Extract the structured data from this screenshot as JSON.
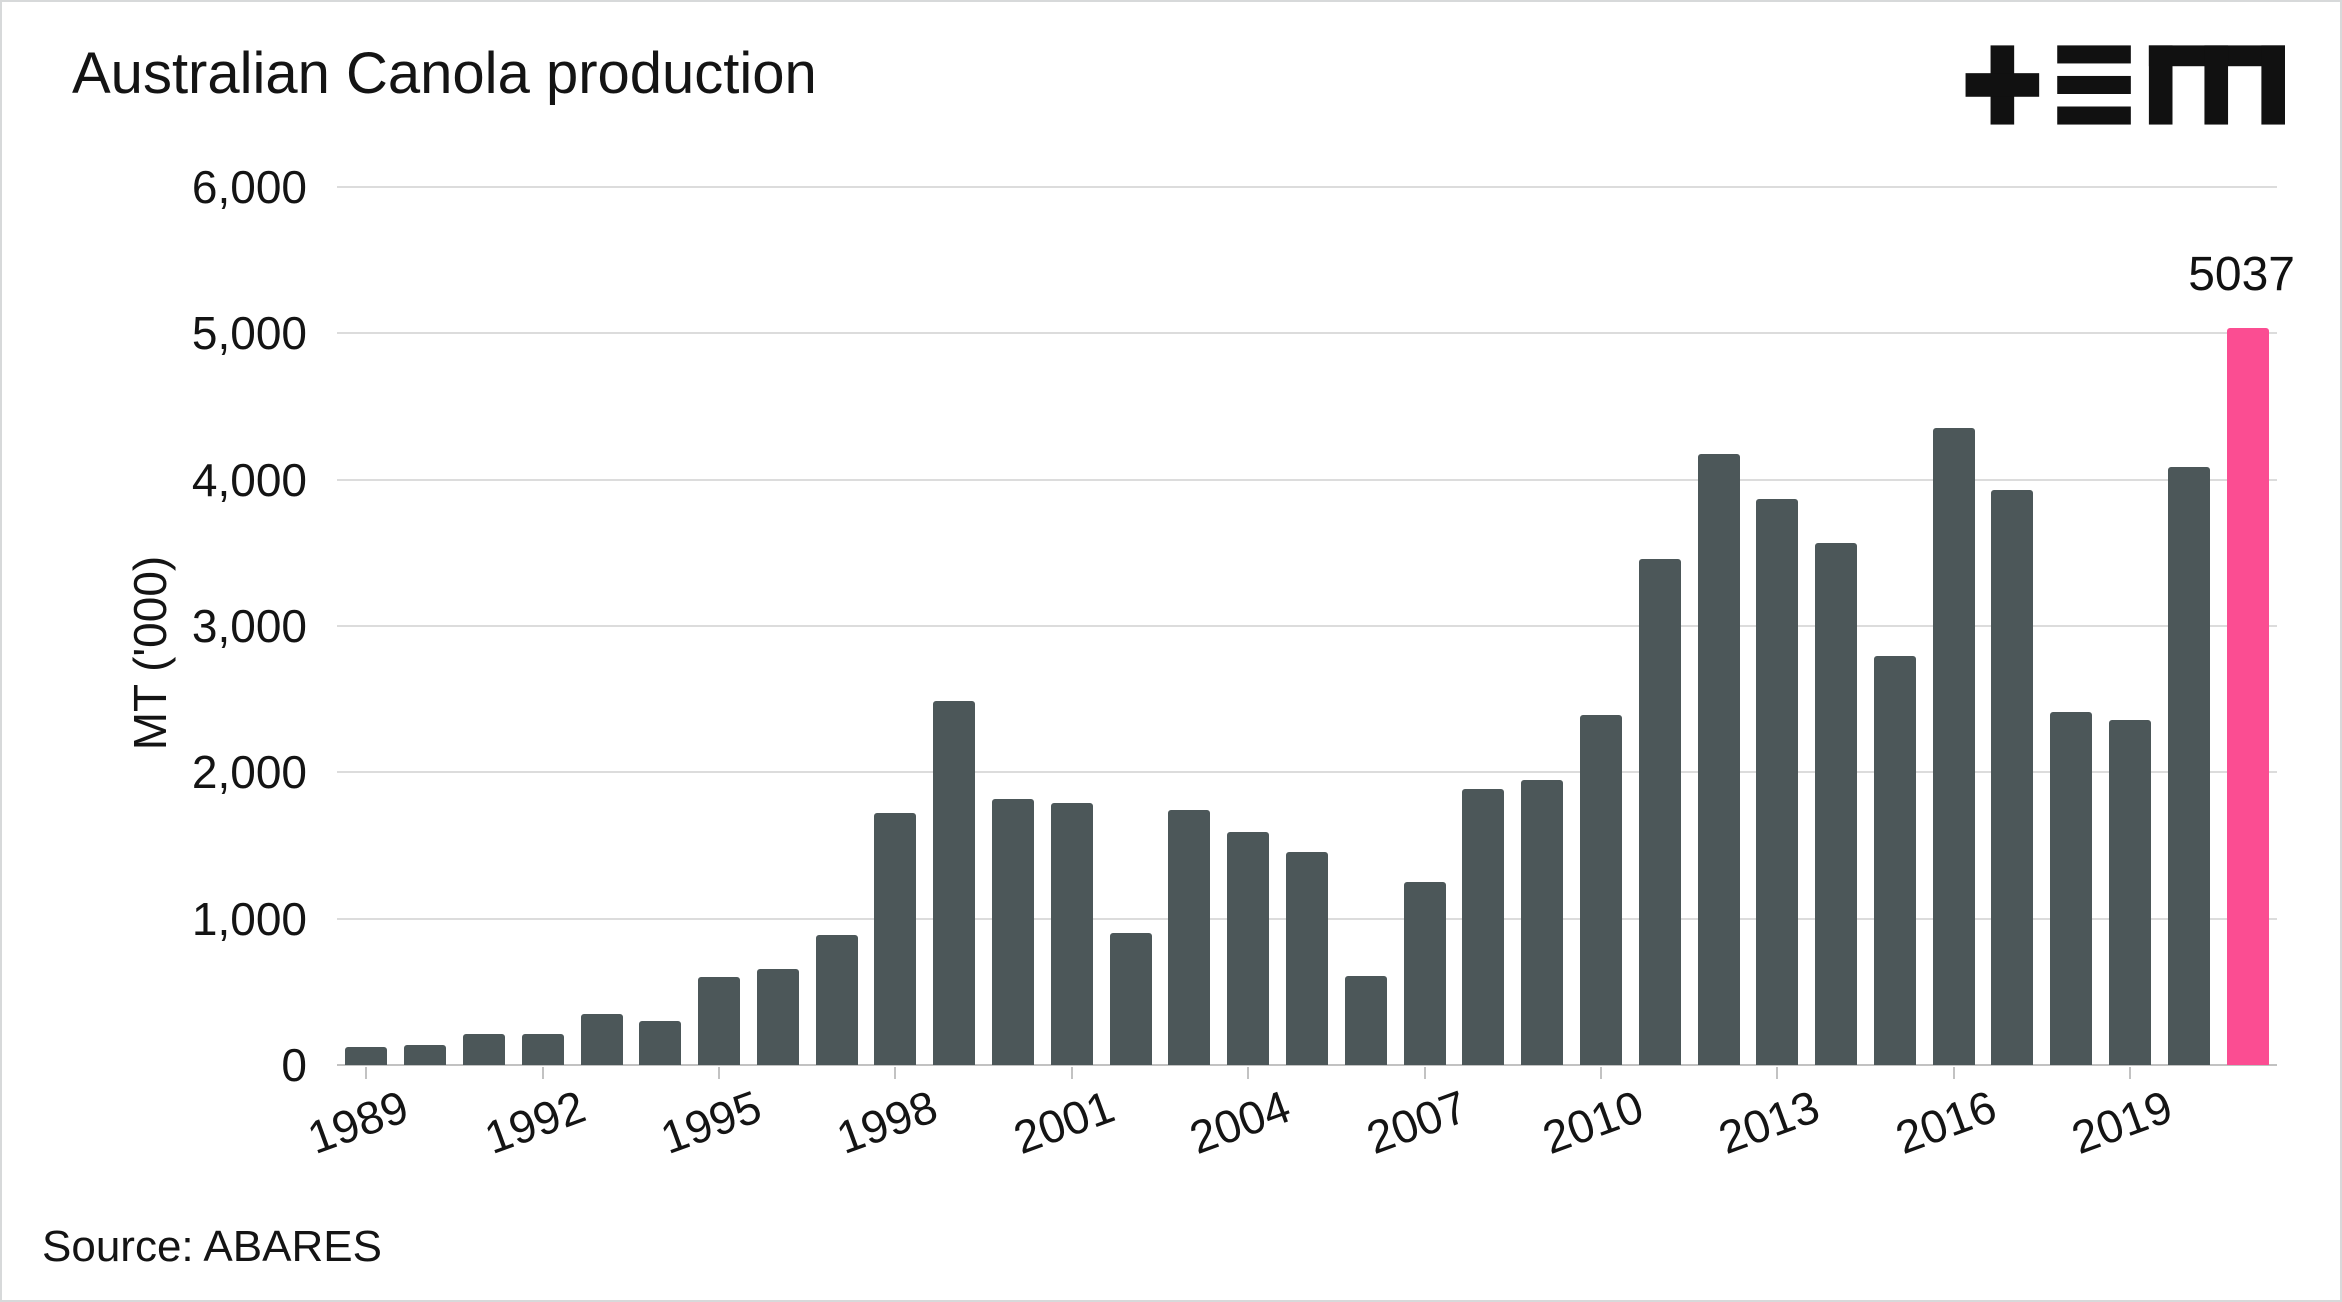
{
  "chart": {
    "title": "Australian Canola production",
    "y_axis_title": "MT ('000)",
    "source": "Source: ABARES",
    "logo_name": "tem-logo"
  },
  "colors": {
    "bar": "#4c5759",
    "highlight": "#fb4d92",
    "gridline": "#dcdcdc",
    "axis": "#c2c2c2",
    "text": "#141414",
    "logo": "#111111"
  },
  "chart_data": {
    "type": "bar",
    "title": "Australian Canola production",
    "xlabel": "",
    "ylabel": "MT ('000)",
    "ylim": [
      0,
      6000
    ],
    "ytick_step": 1000,
    "grid": true,
    "x": [
      1989,
      1990,
      1991,
      1992,
      1993,
      1994,
      1995,
      1996,
      1997,
      1998,
      1999,
      2000,
      2001,
      2002,
      2003,
      2004,
      2005,
      2006,
      2007,
      2008,
      2009,
      2010,
      2011,
      2012,
      2013,
      2014,
      2015,
      2016,
      2017,
      2018,
      2019,
      2020,
      2021
    ],
    "values": [
      120,
      140,
      215,
      215,
      350,
      300,
      600,
      655,
      890,
      1720,
      2490,
      1820,
      1790,
      900,
      1740,
      1590,
      1455,
      605,
      1250,
      1885,
      1945,
      2395,
      3460,
      4175,
      3870,
      3570,
      2795,
      4350,
      3930,
      2415,
      2355,
      4085,
      5037
    ],
    "x_tick_labels": [
      "1989",
      "1992",
      "1995",
      "1998",
      "2001",
      "2004",
      "2007",
      "2010",
      "2013",
      "2016",
      "2019"
    ],
    "highlight": {
      "year": 2021,
      "value": 5037,
      "label": "5037"
    },
    "legend": "none"
  }
}
